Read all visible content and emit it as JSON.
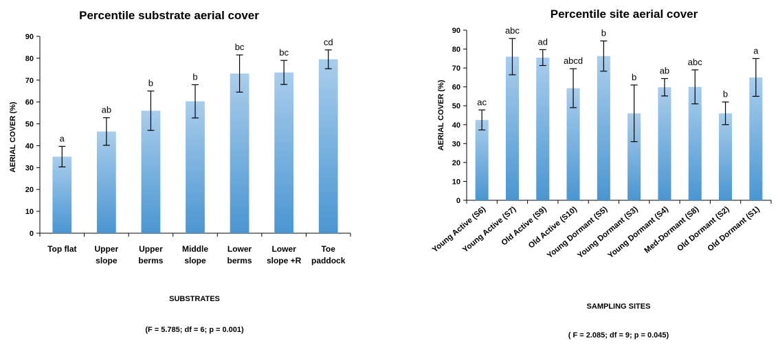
{
  "colors": {
    "bar_top": "#a9cdec",
    "bar_bottom": "#4a96d2",
    "axis": "#000000",
    "error_bar": "#000000"
  },
  "charts": [
    {
      "id": "substrates",
      "title": "Percentile substrate aerial cover",
      "ylabel": "AERIAL COVER (%)",
      "xlabel": "SUBSTRATES",
      "stats": "(F = 5.785; df = 6; p = 0.001)"
    },
    {
      "id": "sites",
      "title": "Percentile site aerial cover",
      "ylabel": "AERIAL COVER (%)",
      "xlabel": "SAMPLING SITES",
      "stats": "( F = 2.085; df = 9; p = 0.045)"
    }
  ],
  "chart_data": [
    {
      "type": "bar",
      "title": "Percentile substrate aerial cover",
      "xlabel": "SUBSTRATES",
      "ylabel": "AERIAL COVER (%)",
      "ylim": [
        0,
        90
      ],
      "yticks": [
        0,
        10,
        20,
        30,
        40,
        50,
        60,
        70,
        80,
        90
      ],
      "categories": [
        [
          "Top flat"
        ],
        [
          "Upper",
          "slope"
        ],
        [
          "Upper",
          "berms"
        ],
        [
          "Middle",
          "slope"
        ],
        [
          "Lower",
          "berms"
        ],
        [
          "Lower",
          "slope +R"
        ],
        [
          "Toe",
          "paddock"
        ]
      ],
      "values": [
        35,
        46.5,
        56,
        60.3,
        73,
        73.5,
        79.5
      ],
      "error": [
        4.7,
        6.3,
        9,
        7.6,
        8.5,
        5.5,
        4.3
      ],
      "labels": [
        "a",
        "ab",
        "b",
        "b",
        "bc",
        "bc",
        "cd"
      ],
      "grid": false,
      "legend": "none"
    },
    {
      "type": "bar",
      "title": "Percentile site aerial cover",
      "xlabel": "SAMPLING SITES",
      "ylabel": "AERIAL COVER (%)",
      "ylim": [
        0,
        90
      ],
      "yticks": [
        0,
        10,
        20,
        30,
        40,
        50,
        60,
        70,
        80,
        90
      ],
      "categories": [
        "Young Active (S6)",
        "Young Active (S7)",
        "Old Active (S9)",
        "Old Active (S10)",
        "Young Dormant (S5)",
        "Young Dormant (S3)",
        "Young Dormant (S4)",
        "Med-Dormant (S8)",
        "Old Dormant (S2)",
        "Old Dormant (S1)"
      ],
      "values": [
        42.5,
        76,
        75.5,
        59.3,
        76.3,
        46,
        59.8,
        60,
        46,
        65
      ],
      "error": [
        5.3,
        9.6,
        4.2,
        10.3,
        8,
        15,
        4.6,
        9,
        6,
        10
      ],
      "labels": [
        "ac",
        "abc",
        "ad",
        "abcd",
        "b",
        "b",
        "ab",
        "abc",
        "b",
        "a"
      ],
      "grid": false,
      "legend": "none"
    }
  ]
}
